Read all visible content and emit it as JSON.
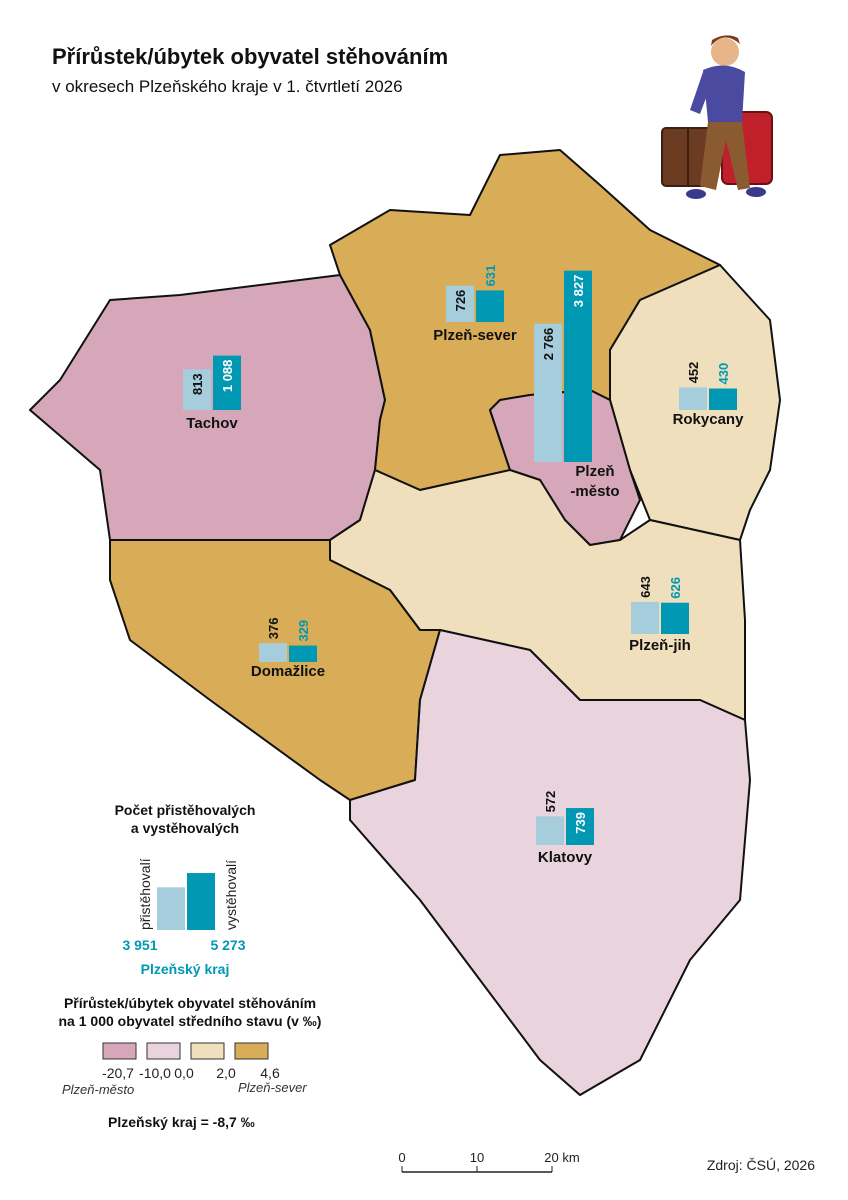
{
  "header": {
    "title": "Přírůstek/úbytek obyvatel stěhováním",
    "subtitle": "v okresech Plzeňského kraje v 1. čtvrtletí 2026"
  },
  "colors": {
    "in": "#a6cddc",
    "out": "#0098b2"
  },
  "districts": [
    {
      "name_lines": [
        "Tachov"
      ],
      "class": 0,
      "values": [
        813,
        1088
      ],
      "value_labels": [
        "813",
        "1 088"
      ]
    },
    {
      "name_lines": [
        "Plzeň-sever"
      ],
      "class": 3,
      "values": [
        726,
        631
      ],
      "value_labels": [
        "726",
        "631"
      ]
    },
    {
      "name_lines": [
        "Plzeň",
        "-město"
      ],
      "class": 0,
      "values": [
        2766,
        3827
      ],
      "value_labels": [
        "2 766",
        "3 827"
      ]
    },
    {
      "name_lines": [
        "Rokycany"
      ],
      "class": 2,
      "values": [
        452,
        430
      ],
      "value_labels": [
        "452",
        "430"
      ]
    },
    {
      "name_lines": [
        "Domažlice"
      ],
      "class": 3,
      "values": [
        376,
        329
      ],
      "value_labels": [
        "376",
        "329"
      ]
    },
    {
      "name_lines": [
        "Plzeň-jih"
      ],
      "class": 2,
      "values": [
        643,
        626
      ],
      "value_labels": [
        "643",
        "626"
      ]
    },
    {
      "name_lines": [
        "Klatovy"
      ],
      "class": 1,
      "values": [
        572,
        739
      ],
      "value_labels": [
        "572",
        "739"
      ]
    }
  ],
  "bar_legend": {
    "title_lines": [
      "Počet přistěhovalých",
      "a vystěhovalých"
    ],
    "in_label": "přistěhovalí",
    "out_label": "vystěhovalí",
    "values": [
      3951,
      5273
    ],
    "value_labels": [
      "3 951",
      "5 273"
    ],
    "region": "Plzeňský kraj"
  },
  "class_legend": {
    "title_lines": [
      "Přírůstek/úbytek obyvatel stěhováním",
      "na 1 000 obyvatel středního stavu (v ‰)"
    ],
    "colors": [
      "#d5a7b9",
      "#e9d3dd",
      "#efdfbc",
      "#d9ad58"
    ],
    "ticks": [
      {
        "value": -20.7,
        "label": "-20,7"
      },
      {
        "value": -10.0,
        "label": "-10,0"
      },
      {
        "value": 0.0,
        "label": "0,0"
      },
      {
        "value": 2.0,
        "label": "2,0"
      },
      {
        "value": 4.6,
        "label": "4,6"
      }
    ],
    "min_note": "Plzeň-město",
    "max_note": "Plzeň-sever",
    "total": "Plzeňský kraj = -8,7 ‰"
  },
  "scale_bar": {
    "ticks": [
      "0",
      "10",
      "20 km"
    ]
  },
  "source": "Zdroj: ČSÚ, 2026"
}
